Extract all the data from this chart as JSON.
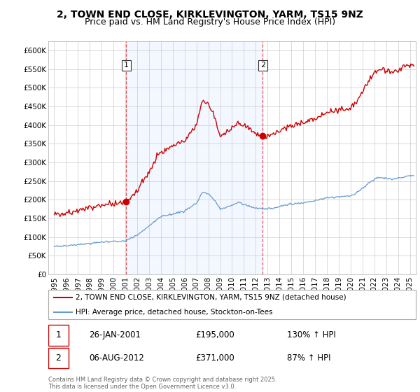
{
  "title": "2, TOWN END CLOSE, KIRKLEVINGTON, YARM, TS15 9NZ",
  "subtitle": "Price paid vs. HM Land Registry's House Price Index (HPI)",
  "yticks": [
    0,
    50000,
    100000,
    150000,
    200000,
    250000,
    300000,
    350000,
    400000,
    450000,
    500000,
    550000,
    600000
  ],
  "ytick_labels": [
    "£0",
    "£50K",
    "£100K",
    "£150K",
    "£200K",
    "£250K",
    "£300K",
    "£350K",
    "£400K",
    "£450K",
    "£500K",
    "£550K",
    "£600K"
  ],
  "xlim_start": 1994.5,
  "xlim_end": 2025.5,
  "ylim_min": 0,
  "ylim_max": 625000,
  "property_color": "#cc0000",
  "hpi_color": "#6699cc",
  "vline_color": "#dd4444",
  "shade_color": "#e8f0ff",
  "property_label": "2, TOWN END CLOSE, KIRKLEVINGTON, YARM, TS15 9NZ (detached house)",
  "hpi_label": "HPI: Average price, detached house, Stockton-on-Tees",
  "sale1_date": 2001.07,
  "sale1_price": 195000,
  "sale1_label": "1",
  "sale1_display": "26-JAN-2001",
  "sale1_amount": "£195,000",
  "sale1_hpi": "130% ↑ HPI",
  "sale2_date": 2012.59,
  "sale2_price": 371000,
  "sale2_label": "2",
  "sale2_display": "06-AUG-2012",
  "sale2_amount": "£371,000",
  "sale2_hpi": "87% ↑ HPI",
  "copyright_text": "Contains HM Land Registry data © Crown copyright and database right 2025.\nThis data is licensed under the Open Government Licence v3.0.",
  "background_color": "#ffffff",
  "grid_color": "#cccccc",
  "title_fontsize": 10,
  "subtitle_fontsize": 9,
  "tick_fontsize": 7.5,
  "legend_fontsize": 8
}
